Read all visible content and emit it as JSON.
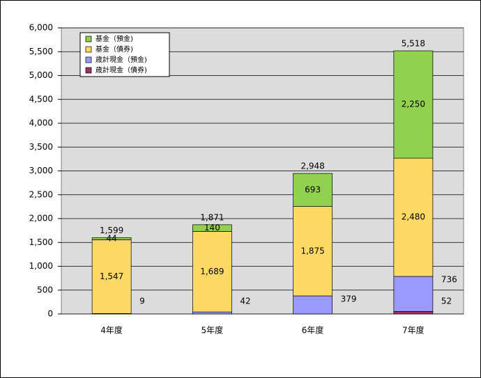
{
  "chart_data": {
    "type": "stacked-bar",
    "categories": [
      "4年度",
      "5年度",
      "6年度",
      "7年度"
    ],
    "series": [
      {
        "name": "歳計現金（債券)",
        "color": "#993366",
        "values": [
          null,
          null,
          null,
          52
        ],
        "value_labels": [
          null,
          null,
          null,
          "52"
        ]
      },
      {
        "name": "歳計現金（預金)",
        "color": "#9999ff",
        "values": [
          9,
          42,
          379,
          736
        ],
        "value_labels": [
          "9",
          "42",
          "379",
          "736"
        ]
      },
      {
        "name": "基金（債券)",
        "color": "#ffd966",
        "values": [
          1547,
          1689,
          1875,
          2480
        ],
        "value_labels": [
          "1,547",
          "1,689",
          "1,875",
          "2,480"
        ]
      },
      {
        "name": "基金（預金)",
        "color": "#92d050",
        "values": [
          44,
          140,
          693,
          2250
        ],
        "value_labels": [
          "44",
          "140",
          "693",
          "2,250"
        ]
      }
    ],
    "totals": [
      1599,
      1871,
      2948,
      5518
    ],
    "total_labels": [
      "1,599",
      "1,871",
      "2,948",
      "5,518"
    ],
    "ylim": [
      0,
      6000
    ],
    "yticks": [
      0,
      500,
      {
        "value": 1000,
        "label": "1,000"
      },
      {
        "value": 1500,
        "label": "1,500"
      },
      {
        "value": 2000,
        "label": "2,000"
      },
      {
        "value": 2500,
        "label": "2,500"
      },
      {
        "value": 3000,
        "label": "3,000"
      },
      {
        "value": 3500,
        "label": "3,500"
      },
      {
        "value": 4000,
        "label": "4,000"
      },
      {
        "value": 4500,
        "label": "4,500"
      },
      {
        "value": 5000,
        "label": "5,000"
      },
      {
        "value": 5500,
        "label": "5,500"
      },
      {
        "value": 6000,
        "label": "6,000"
      }
    ],
    "grid": true,
    "legend": "top-left"
  }
}
